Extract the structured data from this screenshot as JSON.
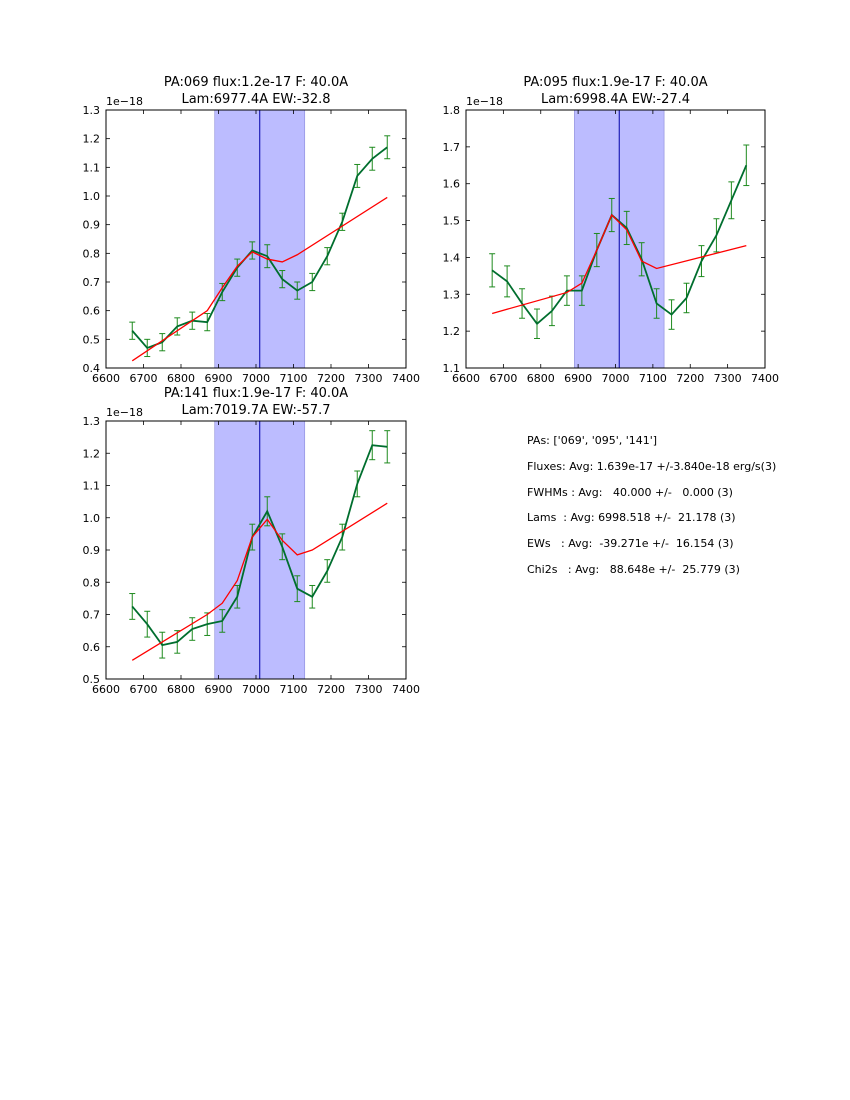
{
  "colors": {
    "data_line": "#006e2e",
    "errorbar": "#1e8a1e",
    "fit_line": "#ff0000",
    "window_fill": "#bcbcff",
    "center_line": "#0000aa"
  },
  "chart_data": [
    {
      "type": "line",
      "title_line1": "PA:069 flux:1.2e-17 F: 40.0A",
      "title_line2": "Lam:6977.4A EW:-32.8",
      "offset_label": "1e−18",
      "xlim": [
        6600,
        7400
      ],
      "ylim": [
        0.4,
        1.3
      ],
      "xticks": [
        6600,
        6700,
        6800,
        6900,
        7000,
        7100,
        7200,
        7300,
        7400
      ],
      "yticks": [
        0.4,
        0.5,
        0.6,
        0.7,
        0.8,
        0.9,
        1.0,
        1.1,
        1.2,
        1.3
      ],
      "yticklabels": [
        "0.4",
        "0.5",
        "0.6",
        "0.7",
        "0.8",
        "0.9",
        "1.0",
        "1.1",
        "1.2",
        "1.3"
      ],
      "shaded_range": [
        6890,
        7130
      ],
      "center_line": 7010,
      "series": [
        {
          "x": [
            6670,
            6710,
            6750,
            6790,
            6830,
            6870,
            6910,
            6950,
            6990,
            7030,
            7070,
            7110,
            7150,
            7190,
            7230,
            7270,
            7310,
            7350
          ],
          "y": [
            0.53,
            0.47,
            0.49,
            0.545,
            0.565,
            0.56,
            0.665,
            0.75,
            0.81,
            0.79,
            0.71,
            0.67,
            0.7,
            0.79,
            0.91,
            1.07,
            1.13,
            1.17
          ],
          "yerr": [
            0.03,
            0.03,
            0.03,
            0.03,
            0.03,
            0.03,
            0.03,
            0.03,
            0.03,
            0.04,
            0.03,
            0.03,
            0.03,
            0.03,
            0.03,
            0.04,
            0.04,
            0.04
          ]
        },
        {
          "x": [
            6670,
            6870,
            6910,
            6950,
            6990,
            7030,
            7070,
            7110,
            7350
          ],
          "y": [
            0.425,
            0.6,
            0.68,
            0.755,
            0.805,
            0.78,
            0.77,
            0.795,
            0.995
          ]
        }
      ]
    },
    {
      "type": "line",
      "title_line1": "PA:095 flux:1.9e-17 F: 40.0A",
      "title_line2": "Lam:6998.4A EW:-27.4",
      "offset_label": "1e−18",
      "xlim": [
        6600,
        7400
      ],
      "ylim": [
        1.1,
        1.8
      ],
      "xticks": [
        6600,
        6700,
        6800,
        6900,
        7000,
        7100,
        7200,
        7300,
        7400
      ],
      "yticks": [
        1.1,
        1.2,
        1.3,
        1.4,
        1.5,
        1.6,
        1.7,
        1.8
      ],
      "yticklabels": [
        "1.1",
        "1.2",
        "1.3",
        "1.4",
        "1.5",
        "1.6",
        "1.7",
        "1.8"
      ],
      "shaded_range": [
        6890,
        7130
      ],
      "center_line": 7010,
      "series": [
        {
          "x": [
            6670,
            6710,
            6750,
            6790,
            6830,
            6870,
            6910,
            6950,
            6990,
            7030,
            7070,
            7110,
            7150,
            7190,
            7230,
            7270,
            7310,
            7350
          ],
          "y": [
            1.365,
            1.335,
            1.275,
            1.22,
            1.255,
            1.31,
            1.31,
            1.42,
            1.515,
            1.48,
            1.395,
            1.275,
            1.245,
            1.29,
            1.39,
            1.46,
            1.555,
            1.65
          ],
          "yerr": [
            0.045,
            0.042,
            0.04,
            0.04,
            0.04,
            0.04,
            0.04,
            0.045,
            0.045,
            0.045,
            0.045,
            0.04,
            0.04,
            0.04,
            0.042,
            0.045,
            0.05,
            0.055
          ]
        },
        {
          "x": [
            6670,
            6870,
            6910,
            6950,
            6990,
            7030,
            7070,
            7110,
            7350
          ],
          "y": [
            1.248,
            1.305,
            1.33,
            1.42,
            1.515,
            1.475,
            1.39,
            1.37,
            1.432
          ]
        }
      ]
    },
    {
      "type": "line",
      "title_line1": "PA:141 flux:1.9e-17 F: 40.0A",
      "title_line2": "Lam:7019.7A EW:-57.7",
      "offset_label": "1e−18",
      "xlim": [
        6600,
        7400
      ],
      "ylim": [
        0.5,
        1.3
      ],
      "xticks": [
        6600,
        6700,
        6800,
        6900,
        7000,
        7100,
        7200,
        7300,
        7400
      ],
      "yticks": [
        0.5,
        0.6,
        0.7,
        0.8,
        0.9,
        1.0,
        1.1,
        1.2,
        1.3
      ],
      "yticklabels": [
        "0.5",
        "0.6",
        "0.7",
        "0.8",
        "0.9",
        "1.0",
        "1.1",
        "1.2",
        "1.3"
      ],
      "shaded_range": [
        6890,
        7130
      ],
      "center_line": 7010,
      "series": [
        {
          "x": [
            6670,
            6710,
            6750,
            6790,
            6830,
            6870,
            6910,
            6950,
            6990,
            7030,
            7070,
            7110,
            7150,
            7190,
            7230,
            7270,
            7310,
            7350
          ],
          "y": [
            0.725,
            0.67,
            0.605,
            0.615,
            0.655,
            0.67,
            0.68,
            0.755,
            0.94,
            1.02,
            0.91,
            0.78,
            0.755,
            0.835,
            0.94,
            1.105,
            1.225,
            1.22
          ],
          "yerr": [
            0.04,
            0.04,
            0.04,
            0.035,
            0.035,
            0.035,
            0.035,
            0.035,
            0.04,
            0.045,
            0.04,
            0.04,
            0.035,
            0.035,
            0.04,
            0.04,
            0.045,
            0.05
          ]
        },
        {
          "x": [
            6670,
            6870,
            6910,
            6950,
            6990,
            7030,
            7070,
            7110,
            7150,
            7350
          ],
          "y": [
            0.558,
            0.7,
            0.735,
            0.805,
            0.94,
            0.995,
            0.93,
            0.885,
            0.9,
            1.045
          ]
        }
      ]
    }
  ],
  "summary": {
    "pas": "PAs: ['069', '095', '141']",
    "fluxes": "Fluxes: Avg: 1.639e-17 +/-3.840e-18 erg/s(3)",
    "fwhms": "FWHMs : Avg:   40.000 +/-   0.000 (3)",
    "lams": "Lams  : Avg: 6998.518 +/-  21.178 (3)",
    "ews": "EWs   : Avg:  -39.271e +/-  16.154 (3)",
    "chi2s": "Chi2s   : Avg:   88.648e +/-  25.779 (3)"
  }
}
